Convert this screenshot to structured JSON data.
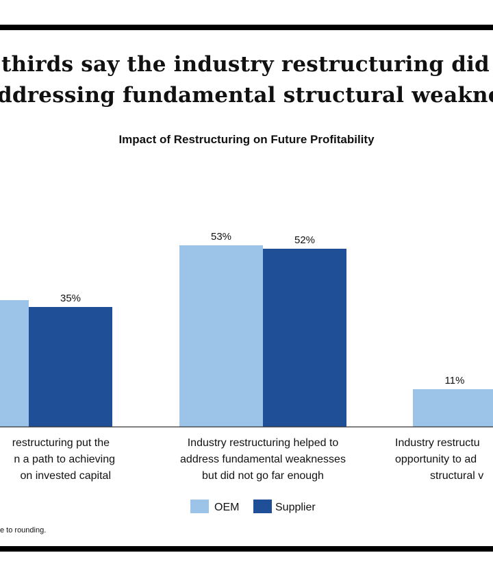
{
  "title_lines": [
    "thirds say the industry restructuring did n",
    "ddressing fundamental structural weaknes"
  ],
  "footnote": "e to rounding.",
  "colors": {
    "oem": "#9cc3e8",
    "supplier": "#1f4f96"
  },
  "chart_data": {
    "type": "bar",
    "title": "Impact of Restructuring on Future Profitability",
    "categories": [
      [
        "restructuring put the",
        "n a path to achieving",
        " on invested capital"
      ],
      [
        "Industry restructuring helped to",
        "address fundamental weaknesses",
        "but did not go far enough"
      ],
      [
        "Industry restructu",
        "opportunity to ad",
        "structural v"
      ]
    ],
    "series": [
      {
        "name": "OEM",
        "values": [
          37,
          53,
          11
        ],
        "labels": [
          "",
          "53%",
          "11%"
        ]
      },
      {
        "name": "Supplier",
        "values": [
          35,
          52,
          null
        ],
        "labels": [
          "35%",
          "52%",
          ""
        ]
      }
    ],
    "ylim": [
      0,
      60
    ],
    "grid": false,
    "legend": "bottom-center"
  }
}
